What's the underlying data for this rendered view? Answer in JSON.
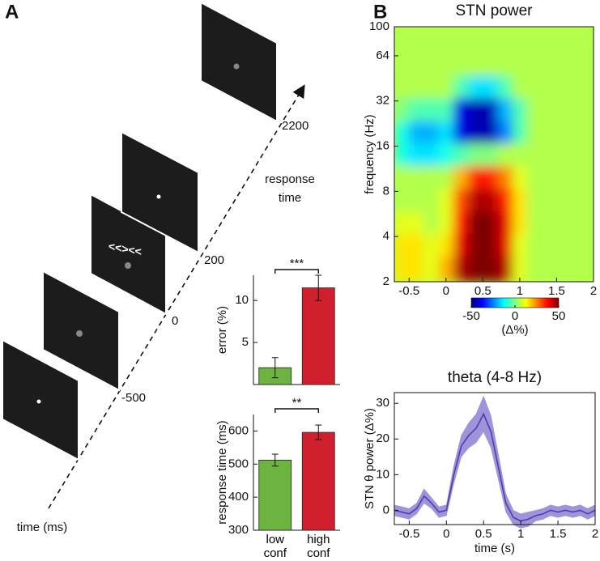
{
  "panel_labels": [
    "A",
    "B"
  ],
  "task_diagram": {
    "time_labels": [
      "-500",
      "0",
      "200",
      "2200"
    ],
    "flanker": "<<><<",
    "response_label": [
      "response",
      "time"
    ],
    "axis_label": "time (ms)"
  },
  "chart_data": [
    {
      "type": "bar",
      "ylabel": "error (%)",
      "values": [
        2,
        11.5
      ],
      "errors": [
        1.2,
        1.5
      ],
      "colors": [
        "#6db33f",
        "#d0202e"
      ],
      "ylim": [
        0,
        13
      ],
      "yticks": [
        5,
        10
      ],
      "annotation": "***"
    },
    {
      "type": "bar",
      "ylabel": "response time (ms)",
      "categories": [
        "low conf",
        "high conf"
      ],
      "values": [
        512,
        596
      ],
      "errors": [
        18,
        22
      ],
      "colors": [
        "#6db33f",
        "#d0202e"
      ],
      "ylim": [
        300,
        650
      ],
      "yticks": [
        300,
        400,
        500,
        600
      ],
      "annotation": "**"
    },
    {
      "type": "heatmap",
      "title": "STN power",
      "ylabel": "frequency (Hz)",
      "colormap": "jet",
      "log_y": true,
      "x": [
        -0.6,
        -0.4,
        -0.2,
        0,
        0.2,
        0.4,
        0.6,
        0.8,
        1.0,
        1.2,
        1.4,
        1.6,
        1.8
      ],
      "y": [
        2.5,
        3.5,
        5,
        7,
        10,
        14,
        20,
        28,
        40,
        56,
        80
      ],
      "z": [
        [
          15,
          15,
          10,
          20,
          45,
          50,
          50,
          45,
          10,
          5,
          5,
          5,
          5
        ],
        [
          15,
          15,
          10,
          15,
          40,
          50,
          50,
          40,
          10,
          5,
          5,
          5,
          5
        ],
        [
          10,
          10,
          5,
          10,
          35,
          50,
          50,
          40,
          15,
          5,
          5,
          5,
          5
        ],
        [
          5,
          5,
          5,
          10,
          30,
          45,
          45,
          35,
          15,
          5,
          5,
          5,
          5
        ],
        [
          5,
          5,
          5,
          5,
          20,
          35,
          35,
          25,
          10,
          5,
          5,
          5,
          5
        ],
        [
          -10,
          -15,
          -15,
          -10,
          -5,
          0,
          0,
          5,
          5,
          5,
          5,
          5,
          5
        ],
        [
          -10,
          -20,
          -20,
          -15,
          -40,
          -45,
          -45,
          -25,
          -5,
          5,
          5,
          5,
          5
        ],
        [
          0,
          -5,
          -5,
          -5,
          -40,
          -45,
          -45,
          -20,
          -5,
          5,
          5,
          5,
          5
        ],
        [
          5,
          5,
          5,
          5,
          -5,
          -15,
          -15,
          -5,
          5,
          5,
          5,
          5,
          5
        ],
        [
          5,
          5,
          5,
          5,
          5,
          5,
          5,
          5,
          5,
          5,
          5,
          5,
          5
        ],
        [
          5,
          5,
          5,
          5,
          5,
          5,
          5,
          5,
          5,
          5,
          5,
          5,
          5
        ]
      ],
      "xlim": [
        -0.7,
        2
      ],
      "ylim": [
        2,
        100
      ],
      "xticks": [
        -0.5,
        0,
        0.5,
        1,
        1.5,
        2
      ],
      "yticks": [
        2,
        4,
        8,
        16,
        32,
        64,
        100
      ],
      "colorbar": {
        "lim": [
          -50,
          50
        ],
        "ticks": [
          -50,
          0,
          50
        ],
        "label": "(Δ%)"
      }
    },
    {
      "type": "line",
      "title": "theta (4-8 Hz)",
      "xlabel": "time (s)",
      "ylabel": "STN θ power (Δ%)",
      "color": "#4b3fa8",
      "band_color": "#a093dc",
      "x": [
        -0.7,
        -0.6,
        -0.5,
        -0.4,
        -0.3,
        -0.2,
        -0.1,
        0,
        0.1,
        0.2,
        0.3,
        0.4,
        0.5,
        0.6,
        0.7,
        0.8,
        0.9,
        1,
        1.1,
        1.2,
        1.3,
        1.4,
        1.5,
        1.6,
        1.7,
        1.8,
        1.9,
        2
      ],
      "values": [
        0,
        -0.5,
        -1,
        0.5,
        4,
        2,
        -0.5,
        0,
        10,
        18,
        21,
        23,
        27,
        22,
        12,
        2,
        -2,
        -3,
        -2.5,
        -1.5,
        -1,
        0,
        -0.5,
        0,
        -0.5,
        0,
        -1,
        0
      ],
      "error": [
        1.5,
        1.5,
        1.5,
        1.5,
        2,
        1.5,
        1.5,
        1.5,
        2.5,
        3,
        3.5,
        4,
        5,
        4.5,
        3.5,
        2.5,
        2,
        2,
        2,
        1.5,
        1.5,
        1.5,
        1.5,
        1.5,
        1.5,
        1.5,
        1.5,
        1.5
      ],
      "xlim": [
        -0.7,
        2
      ],
      "ylim": [
        -4,
        33
      ],
      "xticks": [
        -0.5,
        0,
        0.5,
        1,
        1.5,
        2
      ],
      "yticks": [
        0,
        10,
        20,
        30
      ]
    }
  ]
}
